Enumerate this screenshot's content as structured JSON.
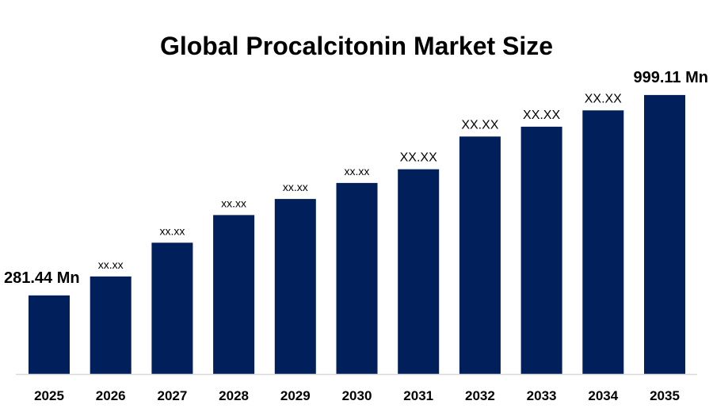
{
  "chart_data": {
    "type": "bar",
    "title": "Global Procalcitonin Market Size",
    "xlabel": "",
    "ylabel": "",
    "categories": [
      "2025",
      "2026",
      "2027",
      "2028",
      "2029",
      "2030",
      "2031",
      "2032",
      "2033",
      "2034",
      "2035"
    ],
    "values": [
      281.44,
      349.4,
      470.3,
      569.4,
      626.8,
      684.2,
      733.2,
      850.6,
      885.8,
      944.2,
      999.11
    ],
    "data_labels": [
      "281.44 Mn",
      "xx.xx",
      "xx.xx",
      "xx.xx",
      "xx.xx",
      "xx.xx",
      "XX.XX",
      "XX.XX",
      "XX.XX",
      "XX.XX",
      "999.11 Mn"
    ],
    "ylim": [
      0,
      1050
    ],
    "grid": false,
    "legend": "none",
    "bar_color": "#001F5B",
    "axis_color": "#D9D9D9"
  }
}
